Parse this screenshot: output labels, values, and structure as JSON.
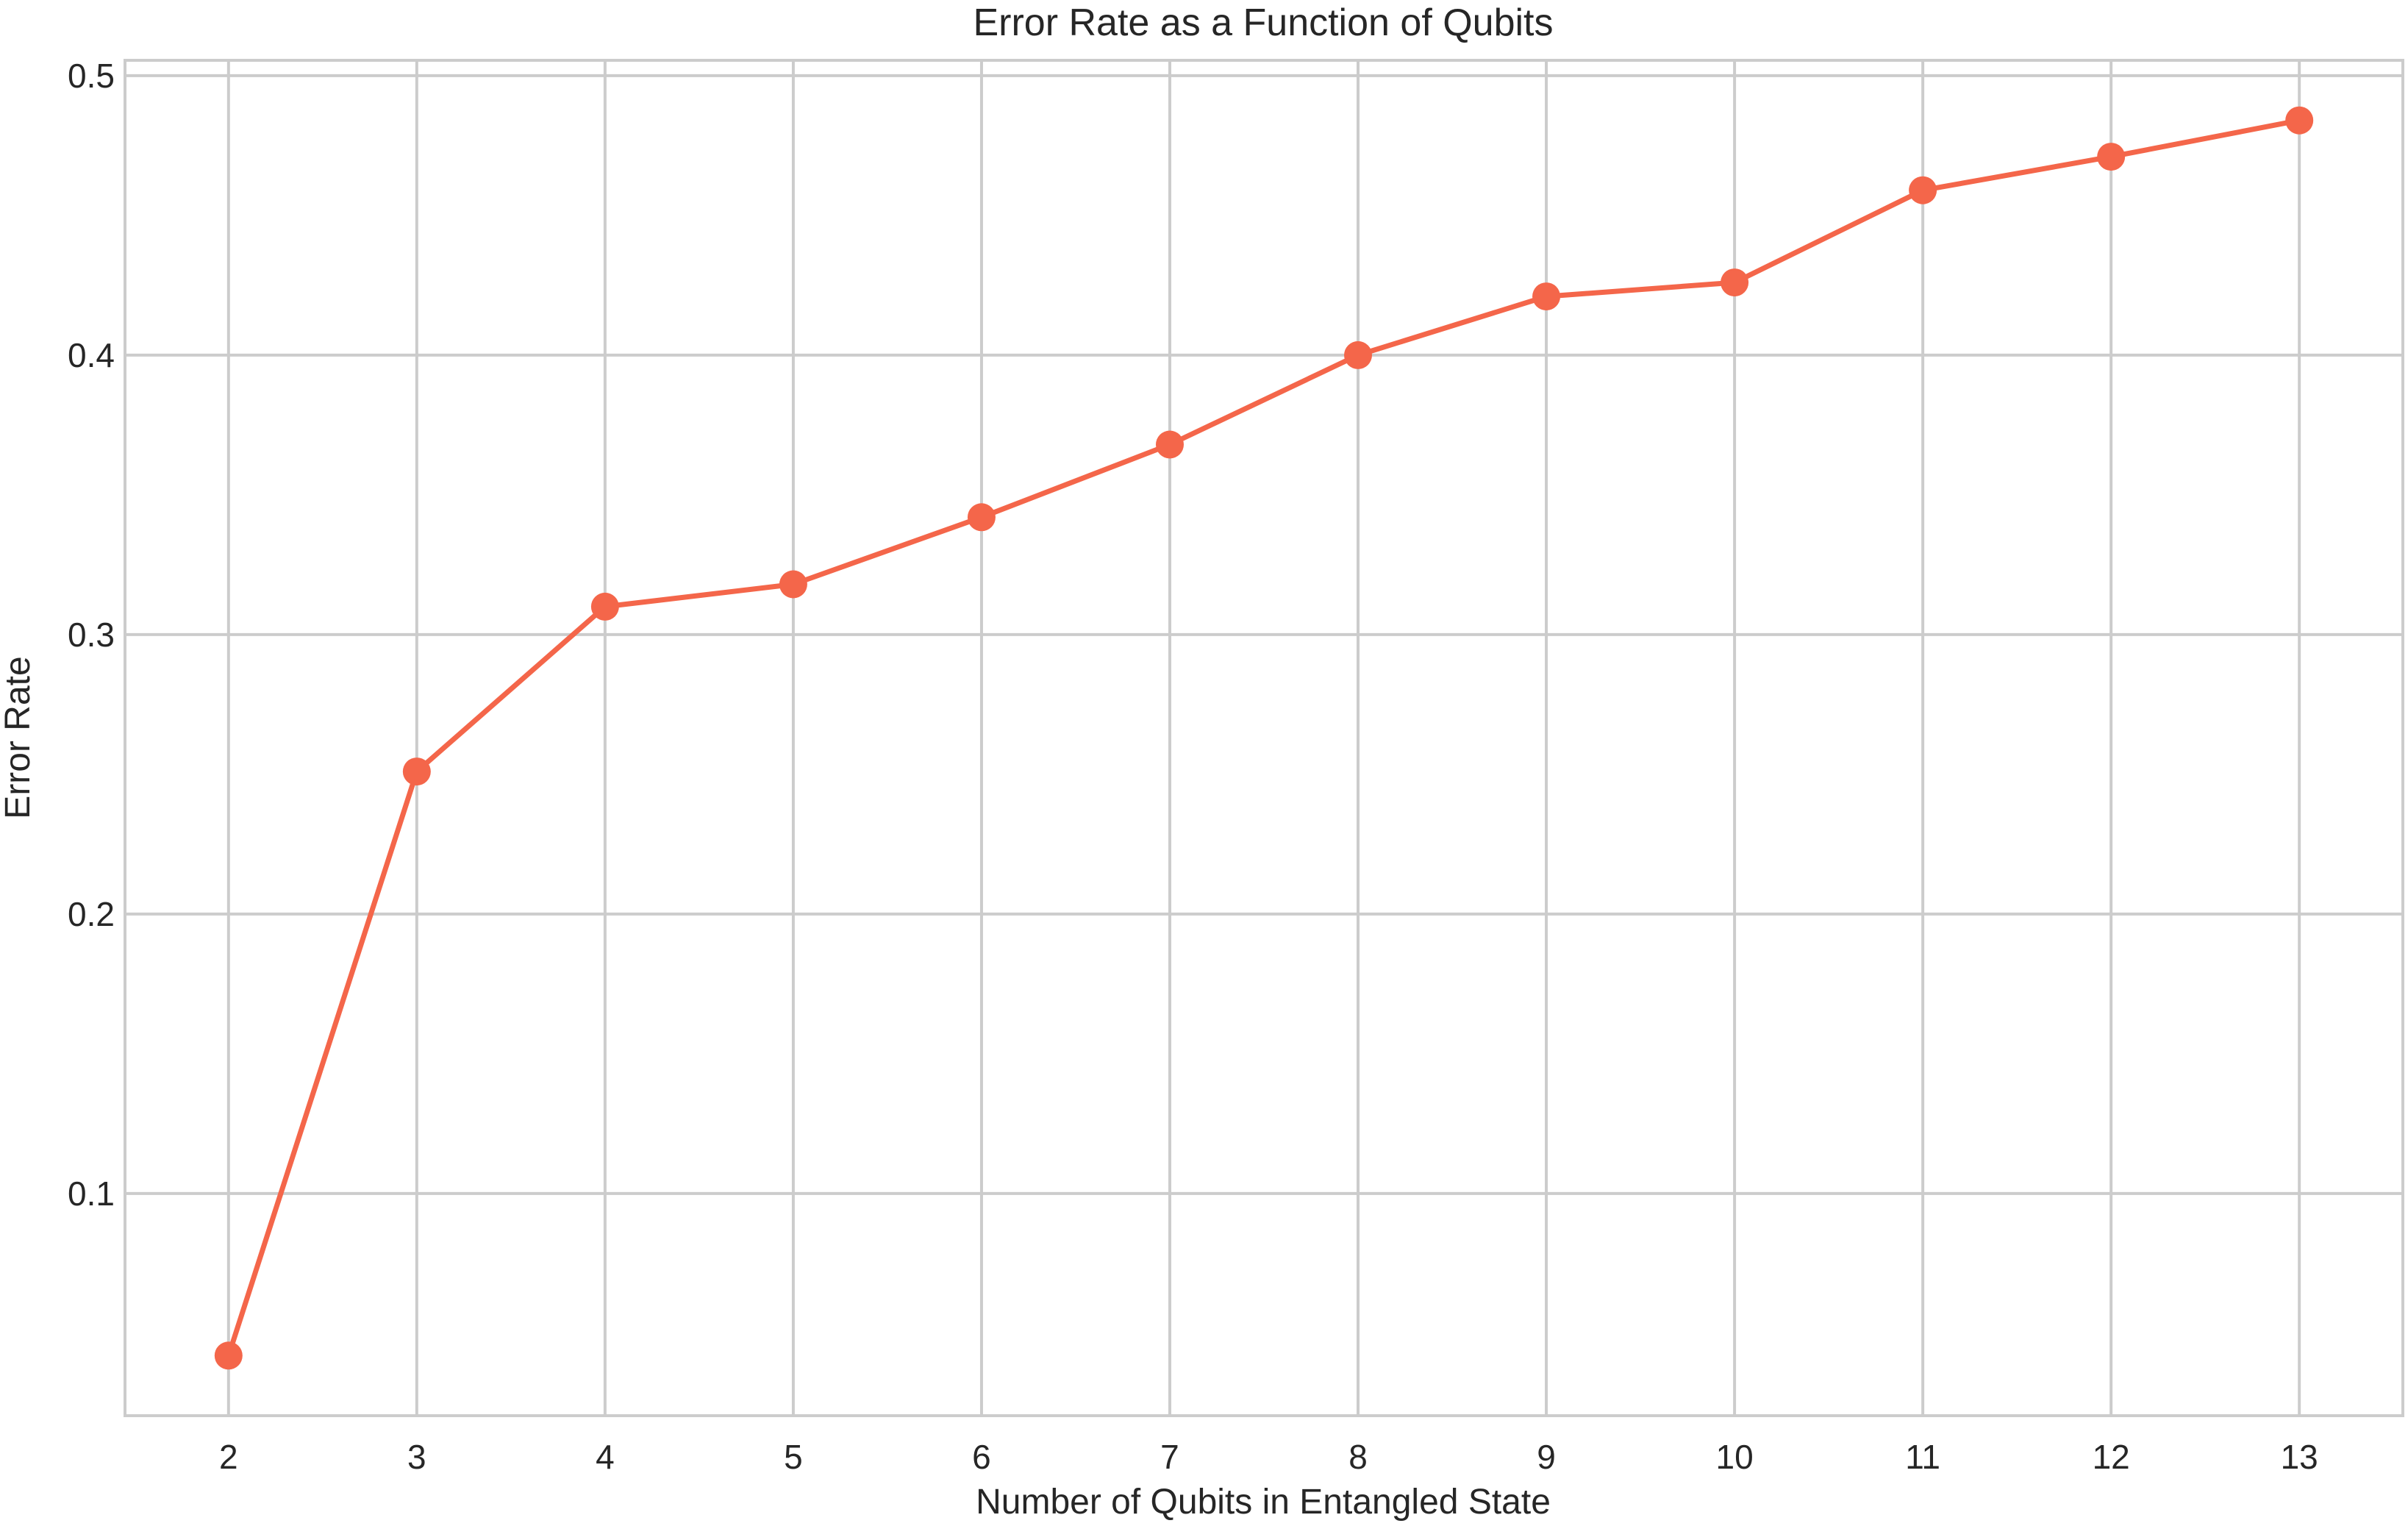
{
  "chart_data": {
    "type": "line",
    "title": "Error Rate as a Function of Qubits",
    "xlabel": "Number of Qubits in Entangled State",
    "ylabel": "Error Rate",
    "x": [
      2,
      3,
      4,
      5,
      6,
      7,
      8,
      9,
      10,
      11,
      12,
      13
    ],
    "series": [
      {
        "values": [
          0.042,
          0.251,
          0.31,
          0.318,
          0.342,
          0.368,
          0.4,
          0.421,
          0.426,
          0.459,
          0.471,
          0.484
        ],
        "color": "#f4664a",
        "marker": "circle"
      }
    ],
    "xlim": [
      1.45,
      13.55
    ],
    "ylim": [
      0.0205,
      0.5055
    ],
    "xticks": [
      2,
      3,
      4,
      5,
      6,
      7,
      8,
      9,
      10,
      11,
      12,
      13
    ],
    "yticks": [
      0.1,
      0.2,
      0.3,
      0.4,
      0.5
    ],
    "ytick_labels": [
      "0.1",
      "0.2",
      "0.3",
      "0.4",
      "0.5"
    ],
    "grid": true,
    "legend": "none"
  }
}
